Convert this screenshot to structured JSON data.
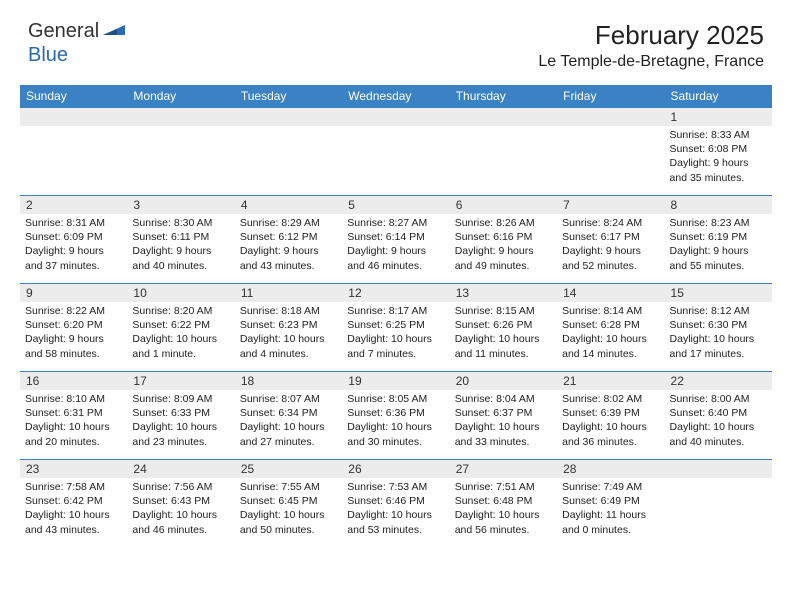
{
  "logo": {
    "general": "General",
    "blue": "Blue"
  },
  "title": "February 2025",
  "location": "Le Temple-de-Bretagne, France",
  "colors": {
    "header_bg": "#3b82c4",
    "header_text": "#ffffff",
    "daynum_bg": "#ececec",
    "text": "#222222",
    "logo_blue": "#2a6ab0"
  },
  "day_names": [
    "Sunday",
    "Monday",
    "Tuesday",
    "Wednesday",
    "Thursday",
    "Friday",
    "Saturday"
  ],
  "weeks": [
    [
      {
        "n": "",
        "lines": []
      },
      {
        "n": "",
        "lines": []
      },
      {
        "n": "",
        "lines": []
      },
      {
        "n": "",
        "lines": []
      },
      {
        "n": "",
        "lines": []
      },
      {
        "n": "",
        "lines": []
      },
      {
        "n": "1",
        "lines": [
          "Sunrise: 8:33 AM",
          "Sunset: 6:08 PM",
          "Daylight: 9 hours and 35 minutes."
        ]
      }
    ],
    [
      {
        "n": "2",
        "lines": [
          "Sunrise: 8:31 AM",
          "Sunset: 6:09 PM",
          "Daylight: 9 hours and 37 minutes."
        ]
      },
      {
        "n": "3",
        "lines": [
          "Sunrise: 8:30 AM",
          "Sunset: 6:11 PM",
          "Daylight: 9 hours and 40 minutes."
        ]
      },
      {
        "n": "4",
        "lines": [
          "Sunrise: 8:29 AM",
          "Sunset: 6:12 PM",
          "Daylight: 9 hours and 43 minutes."
        ]
      },
      {
        "n": "5",
        "lines": [
          "Sunrise: 8:27 AM",
          "Sunset: 6:14 PM",
          "Daylight: 9 hours and 46 minutes."
        ]
      },
      {
        "n": "6",
        "lines": [
          "Sunrise: 8:26 AM",
          "Sunset: 6:16 PM",
          "Daylight: 9 hours and 49 minutes."
        ]
      },
      {
        "n": "7",
        "lines": [
          "Sunrise: 8:24 AM",
          "Sunset: 6:17 PM",
          "Daylight: 9 hours and 52 minutes."
        ]
      },
      {
        "n": "8",
        "lines": [
          "Sunrise: 8:23 AM",
          "Sunset: 6:19 PM",
          "Daylight: 9 hours and 55 minutes."
        ]
      }
    ],
    [
      {
        "n": "9",
        "lines": [
          "Sunrise: 8:22 AM",
          "Sunset: 6:20 PM",
          "Daylight: 9 hours and 58 minutes."
        ]
      },
      {
        "n": "10",
        "lines": [
          "Sunrise: 8:20 AM",
          "Sunset: 6:22 PM",
          "Daylight: 10 hours and 1 minute."
        ]
      },
      {
        "n": "11",
        "lines": [
          "Sunrise: 8:18 AM",
          "Sunset: 6:23 PM",
          "Daylight: 10 hours and 4 minutes."
        ]
      },
      {
        "n": "12",
        "lines": [
          "Sunrise: 8:17 AM",
          "Sunset: 6:25 PM",
          "Daylight: 10 hours and 7 minutes."
        ]
      },
      {
        "n": "13",
        "lines": [
          "Sunrise: 8:15 AM",
          "Sunset: 6:26 PM",
          "Daylight: 10 hours and 11 minutes."
        ]
      },
      {
        "n": "14",
        "lines": [
          "Sunrise: 8:14 AM",
          "Sunset: 6:28 PM",
          "Daylight: 10 hours and 14 minutes."
        ]
      },
      {
        "n": "15",
        "lines": [
          "Sunrise: 8:12 AM",
          "Sunset: 6:30 PM",
          "Daylight: 10 hours and 17 minutes."
        ]
      }
    ],
    [
      {
        "n": "16",
        "lines": [
          "Sunrise: 8:10 AM",
          "Sunset: 6:31 PM",
          "Daylight: 10 hours and 20 minutes."
        ]
      },
      {
        "n": "17",
        "lines": [
          "Sunrise: 8:09 AM",
          "Sunset: 6:33 PM",
          "Daylight: 10 hours and 23 minutes."
        ]
      },
      {
        "n": "18",
        "lines": [
          "Sunrise: 8:07 AM",
          "Sunset: 6:34 PM",
          "Daylight: 10 hours and 27 minutes."
        ]
      },
      {
        "n": "19",
        "lines": [
          "Sunrise: 8:05 AM",
          "Sunset: 6:36 PM",
          "Daylight: 10 hours and 30 minutes."
        ]
      },
      {
        "n": "20",
        "lines": [
          "Sunrise: 8:04 AM",
          "Sunset: 6:37 PM",
          "Daylight: 10 hours and 33 minutes."
        ]
      },
      {
        "n": "21",
        "lines": [
          "Sunrise: 8:02 AM",
          "Sunset: 6:39 PM",
          "Daylight: 10 hours and 36 minutes."
        ]
      },
      {
        "n": "22",
        "lines": [
          "Sunrise: 8:00 AM",
          "Sunset: 6:40 PM",
          "Daylight: 10 hours and 40 minutes."
        ]
      }
    ],
    [
      {
        "n": "23",
        "lines": [
          "Sunrise: 7:58 AM",
          "Sunset: 6:42 PM",
          "Daylight: 10 hours and 43 minutes."
        ]
      },
      {
        "n": "24",
        "lines": [
          "Sunrise: 7:56 AM",
          "Sunset: 6:43 PM",
          "Daylight: 10 hours and 46 minutes."
        ]
      },
      {
        "n": "25",
        "lines": [
          "Sunrise: 7:55 AM",
          "Sunset: 6:45 PM",
          "Daylight: 10 hours and 50 minutes."
        ]
      },
      {
        "n": "26",
        "lines": [
          "Sunrise: 7:53 AM",
          "Sunset: 6:46 PM",
          "Daylight: 10 hours and 53 minutes."
        ]
      },
      {
        "n": "27",
        "lines": [
          "Sunrise: 7:51 AM",
          "Sunset: 6:48 PM",
          "Daylight: 10 hours and 56 minutes."
        ]
      },
      {
        "n": "28",
        "lines": [
          "Sunrise: 7:49 AM",
          "Sunset: 6:49 PM",
          "Daylight: 11 hours and 0 minutes."
        ]
      },
      {
        "n": "",
        "lines": []
      }
    ]
  ]
}
